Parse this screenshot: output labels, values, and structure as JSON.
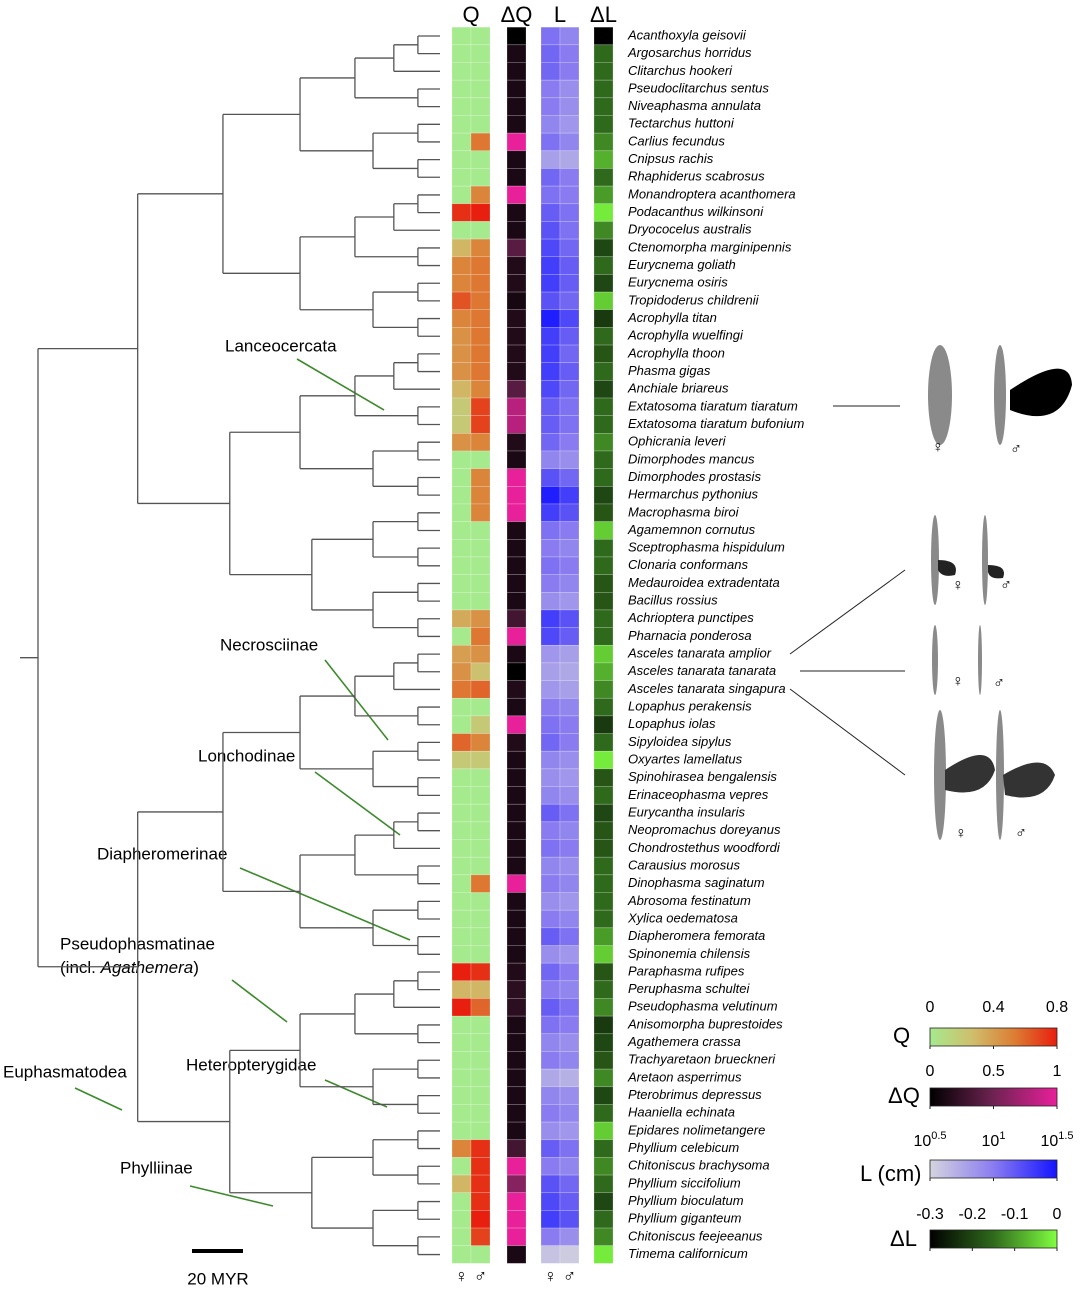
{
  "chart_data": {
    "type": "heatmap",
    "species": [
      "Acanthoxyla geisovii",
      "Argosarchus horridus",
      "Clitarchus hookeri",
      "Pseudoclitarchus sentus",
      "Niveaphasma annulata",
      "Tectarchus huttoni",
      "Carlius fecundus",
      "Cnipsus rachis",
      "Rhaphiderus scabrosus",
      "Monandroptera acanthomera",
      "Podacanthus wilkinsoni",
      "Dryococelus australis",
      "Ctenomorpha marginipennis",
      "Eurycnema goliath",
      "Eurycnema osiris",
      "Tropidoderus childrenii",
      "Acrophylla titan",
      "Acrophylla wuelfingi",
      "Acrophylla thoon",
      "Phasma gigas",
      "Anchiale briareus",
      "Extatosoma tiaratum tiaratum",
      "Extatosoma tiaratum bufonium",
      "Ophicrania leveri",
      "Dimorphodes mancus",
      "Dimorphodes prostasis",
      "Hermarchus pythonius",
      "Macrophasma biroi",
      "Agamemnon cornutus",
      "Sceptrophasma hispidulum",
      "Clonaria conformans",
      "Medauroidea extradentata",
      "Bacillus rossius",
      "Achrioptera punctipes",
      "Pharnacia ponderosa",
      "Asceles tanarata amplior",
      "Asceles tanarata tanarata",
      "Asceles tanarata singapura",
      "Lopaphus perakensis",
      "Lopaphus iolas",
      "Sipyloidea sipylus",
      "Oxyartes lamellatus",
      "Spinohirasea bengalensis",
      "Erinaceophasma vepres",
      "Eurycantha insularis",
      "Neopromachus doreyanus",
      "Chondrostethus woodfordi",
      "Carausius morosus",
      "Dinophasma saginatum",
      "Abrosoma festinatum",
      "Xylica oedematosa",
      "Diapheromera femorata",
      "Spinonemia chilensis",
      "Paraphasma rufipes",
      "Peruphasma schultei",
      "Pseudophasma velutinum",
      "Anisomorpha buprestoides",
      "Agathemera crassa",
      "Trachyaretaon brueckneri",
      "Aretaon asperrimus",
      "Pterobrimus depressus",
      "Haaniella echinata",
      "Epidares nolimetangere",
      "Phyllium celebicum",
      "Chitoniscus brachysoma",
      "Phyllium siccifolium",
      "Phyllium bioculatum",
      "Phyllium giganteum",
      "Chitoniscus feejeeanus",
      "Timema californicum"
    ],
    "sex_labels": [
      "♀",
      "♂"
    ],
    "panels": [
      {
        "header": "Q",
        "scale": 0,
        "series": [
          [
            0,
            0,
            0,
            0,
            0,
            0,
            0,
            0,
            0,
            0,
            0.75,
            0,
            0.3,
            0.5,
            0.5,
            0.65,
            0.5,
            0.45,
            0.45,
            0.45,
            0.3,
            0.2,
            0.2,
            0.45,
            0,
            0,
            0,
            0,
            0,
            0,
            0,
            0,
            0,
            0.35,
            0,
            0.4,
            0.45,
            0.55,
            0,
            0,
            0.6,
            0.2,
            0,
            0,
            0,
            0,
            0,
            0,
            0,
            0,
            0,
            0,
            0,
            0.8,
            0.3,
            0.8,
            0,
            0,
            0,
            0,
            0,
            0,
            0,
            0.5,
            0,
            0.3,
            0,
            0,
            0,
            0
          ],
          [
            0,
            0,
            0,
            0,
            0,
            0,
            0.55,
            0,
            0,
            0.5,
            0.8,
            0,
            0.5,
            0.55,
            0.55,
            0.55,
            0.55,
            0.55,
            0.55,
            0.55,
            0.5,
            0.7,
            0.7,
            0.5,
            0,
            0.5,
            0.5,
            0.5,
            0,
            0,
            0,
            0,
            0,
            0.45,
            0.55,
            0.45,
            0.25,
            0.6,
            0,
            0.2,
            0.5,
            0.2,
            0,
            0,
            0,
            0,
            0,
            0,
            0.55,
            0,
            0,
            0,
            0,
            0.75,
            0.3,
            0.6,
            0,
            0,
            0,
            0,
            0,
            0,
            0,
            0.75,
            0.75,
            0.75,
            0.75,
            0.8,
            0.7,
            0
          ]
        ]
      },
      {
        "header": "ΔQ",
        "scale": 1,
        "series": [
          [
            0,
            0.12,
            0.12,
            0.12,
            0.12,
            0.12,
            1,
            0.12,
            0.12,
            1,
            0.12,
            0.12,
            0.4,
            0.15,
            0.15,
            0.1,
            0.15,
            0.15,
            0.15,
            0.15,
            0.4,
            0.8,
            0.8,
            0.15,
            0.12,
            1,
            1,
            1,
            0.12,
            0.12,
            0.12,
            0.12,
            0.12,
            0.3,
            1,
            0.12,
            0,
            0.15,
            0.12,
            1,
            0.15,
            0.12,
            0.12,
            0.12,
            0.12,
            0.12,
            0.12,
            0.12,
            1,
            0.12,
            0.12,
            0.12,
            0.12,
            0.15,
            0.2,
            0.2,
            0.12,
            0.12,
            0.12,
            0.12,
            0.12,
            0.12,
            0.12,
            0.3,
            1,
            0.6,
            1,
            1,
            1,
            0.12
          ]
        ]
      },
      {
        "header": "L",
        "scale": 2,
        "series": [
          [
            1.05,
            1.1,
            1.1,
            1.0,
            1.0,
            0.95,
            1.05,
            0.8,
            1.1,
            1.05,
            1.15,
            1.2,
            1.25,
            1.3,
            1.3,
            1.2,
            1.45,
            1.3,
            1.3,
            1.3,
            1.25,
            1.15,
            1.15,
            1.1,
            0.95,
            1.2,
            1.45,
            1.3,
            1.05,
            1.0,
            1.05,
            1.0,
            0.9,
            1.3,
            1.25,
            0.85,
            0.8,
            0.85,
            1.0,
            1.05,
            1.1,
            0.95,
            0.9,
            0.95,
            1.15,
            1.0,
            1.05,
            0.95,
            1.0,
            0.9,
            1.0,
            1.15,
            0.9,
            1.1,
            1.0,
            1.15,
            1.05,
            0.95,
            1.0,
            0.75,
            0.95,
            1.0,
            0.9,
            1.15,
            1.0,
            1.2,
            1.25,
            1.3,
            1.0,
            0.6
          ],
          [
            0.95,
            1.0,
            1.0,
            0.9,
            0.9,
            0.85,
            0.95,
            0.75,
            1.0,
            1.0,
            1.05,
            1.05,
            1.1,
            1.15,
            1.15,
            1.1,
            1.25,
            1.15,
            1.1,
            1.15,
            1.1,
            1.05,
            1.05,
            1.0,
            0.9,
            1.1,
            1.3,
            1.2,
            1.0,
            0.95,
            1.0,
            0.95,
            0.85,
            1.2,
            1.15,
            0.8,
            0.75,
            0.8,
            0.95,
            1.0,
            1.0,
            0.9,
            0.85,
            0.9,
            1.05,
            0.95,
            1.0,
            0.9,
            0.95,
            0.85,
            0.95,
            1.05,
            0.85,
            1.0,
            0.95,
            1.05,
            1.0,
            0.9,
            0.95,
            0.7,
            0.9,
            0.95,
            0.85,
            1.05,
            0.95,
            1.1,
            1.15,
            1.2,
            0.9,
            0.55
          ]
        ]
      },
      {
        "header": "ΔL",
        "scale": 3,
        "series": [
          [
            -0.3,
            -0.15,
            -0.15,
            -0.15,
            -0.15,
            -0.15,
            -0.12,
            -0.08,
            -0.15,
            -0.1,
            -0.02,
            -0.12,
            -0.2,
            -0.15,
            -0.2,
            -0.05,
            -0.22,
            -0.15,
            -0.18,
            -0.15,
            -0.2,
            -0.15,
            -0.15,
            -0.12,
            -0.15,
            -0.15,
            -0.2,
            -0.18,
            -0.05,
            -0.15,
            -0.15,
            -0.18,
            -0.18,
            -0.15,
            -0.15,
            -0.05,
            -0.08,
            -0.12,
            -0.15,
            -0.22,
            -0.15,
            -0.02,
            -0.18,
            -0.15,
            -0.2,
            -0.18,
            -0.18,
            -0.15,
            -0.15,
            -0.15,
            -0.15,
            -0.1,
            -0.05,
            -0.18,
            -0.15,
            -0.12,
            -0.22,
            -0.2,
            -0.18,
            -0.12,
            -0.2,
            -0.15,
            -0.05,
            -0.15,
            -0.12,
            -0.15,
            -0.2,
            -0.15,
            -0.12,
            -0.02
          ]
        ]
      }
    ],
    "scales": [
      {
        "title": "Q",
        "lim": [
          0,
          0.8
        ],
        "ticks": [
          0,
          0.4,
          0.8
        ],
        "colors": [
          "#a6ea8e",
          "#cfbe6c",
          "#dc7d33",
          "#e81e0e"
        ]
      },
      {
        "title": "ΔQ",
        "lim": [
          0,
          1
        ],
        "ticks": [
          0,
          0.5,
          1
        ],
        "colors": [
          "#000000",
          "#6e2352",
          "#e8209a"
        ]
      },
      {
        "title": "L (cm)",
        "lim": [
          0.5,
          1.5
        ],
        "ticks": [
          {
            "value": 0.5,
            "label": "10",
            "sup": "0.5"
          },
          {
            "value": 1,
            "label": "10",
            "sup": "1"
          },
          {
            "value": 1.5,
            "label": "10",
            "sup": "1.5"
          }
        ],
        "colors": [
          "#d4d4de",
          "#8a7cf0",
          "#1414ff"
        ]
      },
      {
        "title": "ΔL",
        "lim": [
          -0.3,
          0
        ],
        "ticks": [
          -0.3,
          -0.2,
          -0.1,
          0
        ],
        "colors": [
          "#000000",
          "#2f6a1c",
          "#80ff40"
        ]
      }
    ],
    "clades": [
      "Lanceocercata",
      "Necrosciinae",
      "Lonchodinae",
      "Diapheromerinae",
      "Pseudophasmatinae",
      "Euphasmatodea",
      "Heteropterygidae",
      "Phylliinae"
    ],
    "clade_note": [
      "(incl. ",
      "Agathemera",
      ")"
    ],
    "scale_bar": "20 MYR"
  }
}
